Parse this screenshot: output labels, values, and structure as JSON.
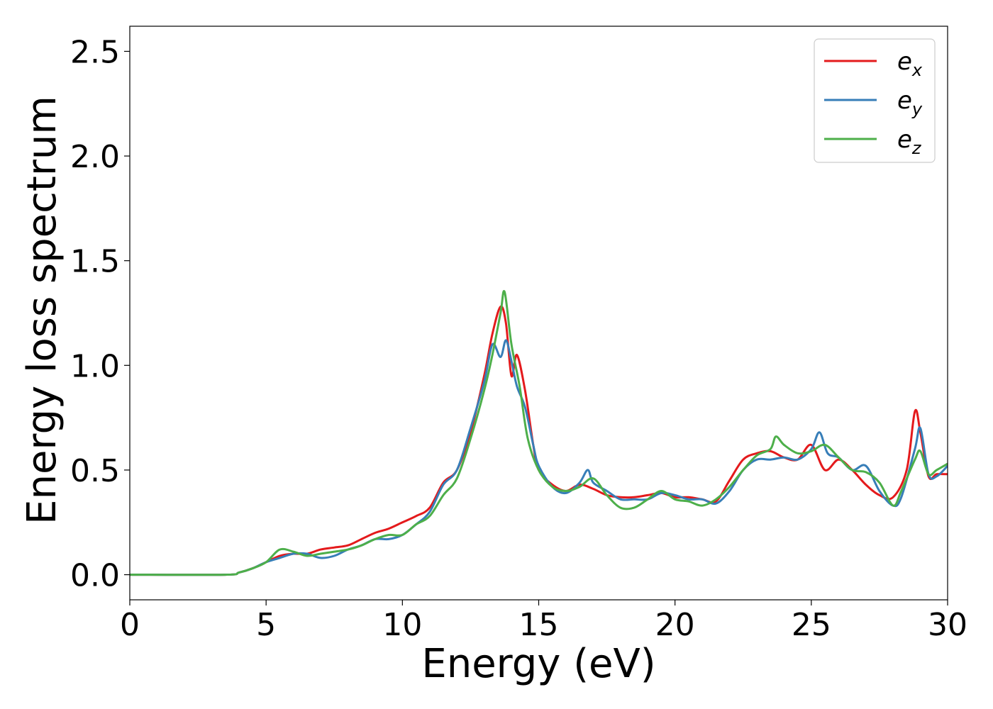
{
  "chart_data": {
    "type": "line",
    "xlabel": "Energy (eV)",
    "ylabel": "Energy loss spectrum",
    "xlim": [
      0,
      30
    ],
    "ylim": [
      -0.12,
      2.62
    ],
    "xticks": [
      0,
      5,
      10,
      15,
      20,
      25,
      30
    ],
    "xtick_labels": [
      "0",
      "5",
      "10",
      "15",
      "20",
      "25",
      "30"
    ],
    "yticks": [
      0.0,
      0.5,
      1.0,
      1.5,
      2.0,
      2.5
    ],
    "ytick_labels": [
      "0.0",
      "0.5",
      "1.0",
      "1.5",
      "2.0",
      "2.5"
    ],
    "grid": false,
    "legend_position": "top-right",
    "series": [
      {
        "name": "e_x",
        "legend_base": "e",
        "legend_sub": "x",
        "color": "#e41a1c",
        "x": [
          0,
          3.5,
          4.0,
          4.5,
          5.0,
          5.5,
          6.0,
          6.5,
          7.0,
          7.5,
          8.0,
          8.5,
          9.0,
          9.5,
          10.0,
          10.5,
          11.0,
          11.5,
          12.0,
          12.5,
          13.0,
          13.3,
          13.6,
          13.8,
          14.0,
          14.2,
          14.5,
          14.8,
          15.0,
          15.5,
          16.0,
          16.5,
          17.0,
          17.5,
          18.0,
          18.5,
          19.0,
          19.5,
          20.0,
          20.5,
          21.0,
          21.5,
          22.0,
          22.5,
          23.0,
          23.5,
          24.0,
          24.5,
          25.0,
          25.5,
          26.0,
          26.5,
          27.0,
          27.5,
          28.0,
          28.5,
          28.8,
          29.0,
          29.3,
          29.6,
          30.0
        ],
        "y": [
          0.0,
          0.0,
          0.01,
          0.03,
          0.06,
          0.09,
          0.1,
          0.1,
          0.12,
          0.13,
          0.14,
          0.17,
          0.2,
          0.22,
          0.25,
          0.28,
          0.32,
          0.44,
          0.5,
          0.68,
          0.95,
          1.15,
          1.28,
          1.2,
          0.95,
          1.05,
          0.88,
          0.62,
          0.5,
          0.43,
          0.4,
          0.43,
          0.41,
          0.38,
          0.37,
          0.37,
          0.38,
          0.39,
          0.37,
          0.37,
          0.36,
          0.35,
          0.45,
          0.55,
          0.58,
          0.59,
          0.56,
          0.55,
          0.62,
          0.5,
          0.55,
          0.5,
          0.43,
          0.38,
          0.37,
          0.5,
          0.78,
          0.68,
          0.47,
          0.48,
          0.48
        ]
      },
      {
        "name": "e_y",
        "legend_base": "e",
        "legend_sub": "y",
        "color": "#377eb8",
        "x": [
          0,
          3.5,
          4.0,
          4.5,
          5.0,
          5.5,
          6.0,
          6.5,
          7.0,
          7.5,
          8.0,
          8.5,
          9.0,
          9.5,
          10.0,
          10.5,
          11.0,
          11.5,
          12.0,
          12.5,
          13.0,
          13.3,
          13.6,
          13.8,
          14.0,
          14.2,
          14.5,
          14.8,
          15.0,
          15.5,
          16.0,
          16.5,
          16.8,
          17.0,
          17.5,
          18.0,
          18.5,
          19.0,
          19.5,
          20.0,
          20.5,
          21.0,
          21.5,
          22.0,
          22.5,
          23.0,
          23.5,
          24.0,
          24.5,
          25.0,
          25.3,
          25.6,
          26.0,
          26.5,
          27.0,
          27.5,
          28.0,
          28.3,
          28.8,
          29.0,
          29.3,
          29.6,
          30.0
        ],
        "y": [
          0.0,
          0.0,
          0.01,
          0.03,
          0.06,
          0.08,
          0.1,
          0.1,
          0.08,
          0.09,
          0.12,
          0.14,
          0.17,
          0.17,
          0.19,
          0.24,
          0.3,
          0.43,
          0.5,
          0.7,
          0.92,
          1.1,
          1.04,
          1.12,
          1.02,
          0.9,
          0.8,
          0.62,
          0.52,
          0.42,
          0.39,
          0.44,
          0.5,
          0.44,
          0.4,
          0.36,
          0.36,
          0.36,
          0.39,
          0.38,
          0.36,
          0.36,
          0.34,
          0.4,
          0.5,
          0.55,
          0.55,
          0.56,
          0.55,
          0.6,
          0.68,
          0.58,
          0.56,
          0.5,
          0.52,
          0.4,
          0.33,
          0.37,
          0.6,
          0.7,
          0.48,
          0.47,
          0.52
        ]
      },
      {
        "name": "e_z",
        "legend_base": "e",
        "legend_sub": "z",
        "color": "#4daf4a",
        "x": [
          0,
          3.5,
          4.0,
          4.5,
          5.0,
          5.5,
          6.0,
          6.5,
          7.0,
          7.5,
          8.0,
          8.5,
          9.0,
          9.5,
          10.0,
          10.5,
          11.0,
          11.5,
          12.0,
          12.5,
          13.0,
          13.3,
          13.6,
          13.75,
          14.0,
          14.3,
          14.6,
          15.0,
          15.5,
          16.0,
          16.5,
          17.0,
          17.5,
          18.0,
          18.5,
          19.0,
          19.5,
          20.0,
          20.5,
          21.0,
          21.5,
          22.0,
          22.5,
          23.0,
          23.5,
          23.7,
          24.0,
          24.5,
          25.0,
          25.5,
          26.0,
          26.5,
          27.0,
          27.5,
          28.0,
          28.3,
          28.8,
          29.0,
          29.3,
          29.6,
          30.0
        ],
        "y": [
          0.0,
          0.0,
          0.01,
          0.03,
          0.06,
          0.12,
          0.11,
          0.09,
          0.1,
          0.11,
          0.12,
          0.14,
          0.17,
          0.19,
          0.19,
          0.24,
          0.28,
          0.38,
          0.46,
          0.65,
          0.88,
          1.05,
          1.25,
          1.35,
          1.1,
          0.9,
          0.65,
          0.5,
          0.42,
          0.4,
          0.42,
          0.46,
          0.38,
          0.32,
          0.32,
          0.36,
          0.4,
          0.36,
          0.35,
          0.33,
          0.36,
          0.42,
          0.5,
          0.57,
          0.6,
          0.66,
          0.62,
          0.58,
          0.59,
          0.62,
          0.56,
          0.5,
          0.49,
          0.44,
          0.33,
          0.4,
          0.55,
          0.59,
          0.48,
          0.5,
          0.53
        ]
      }
    ]
  }
}
